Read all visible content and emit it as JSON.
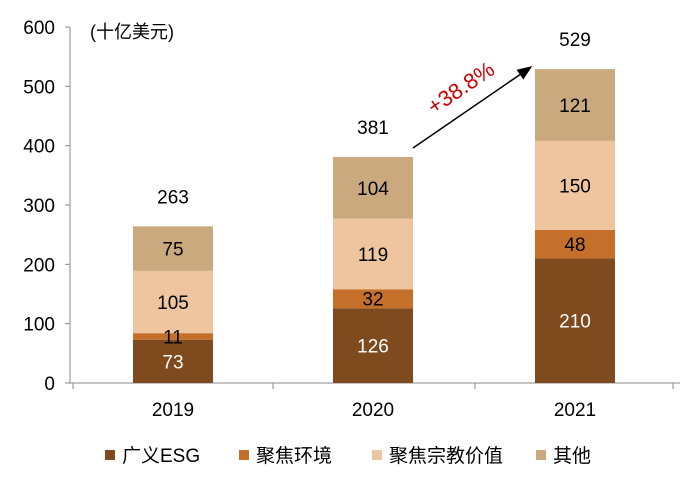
{
  "chart_data": {
    "type": "bar",
    "stacked": true,
    "unit_label": "(十亿美元)",
    "categories": [
      "2019",
      "2020",
      "2021"
    ],
    "series": [
      {
        "name": "广义ESG",
        "values": [
          73,
          126,
          210
        ],
        "color": "#7E4A1E"
      },
      {
        "name": "聚焦环境",
        "values": [
          11,
          32,
          48
        ],
        "color": "#C4702A"
      },
      {
        "name": "聚焦宗教价值",
        "values": [
          105,
          119,
          150
        ],
        "color": "#EEC59E"
      },
      {
        "name": "其他",
        "values": [
          75,
          104,
          121
        ],
        "color": "#C9A97D"
      }
    ],
    "totals": [
      263,
      381,
      529
    ],
    "ylim": [
      0,
      600
    ],
    "yticks": [
      0,
      100,
      200,
      300,
      400,
      500,
      600
    ],
    "grid": false,
    "legend_position": "bottom",
    "annotation": {
      "text": "+38.8%",
      "color": "#CC0000",
      "from": "2020",
      "to": "2021"
    }
  }
}
